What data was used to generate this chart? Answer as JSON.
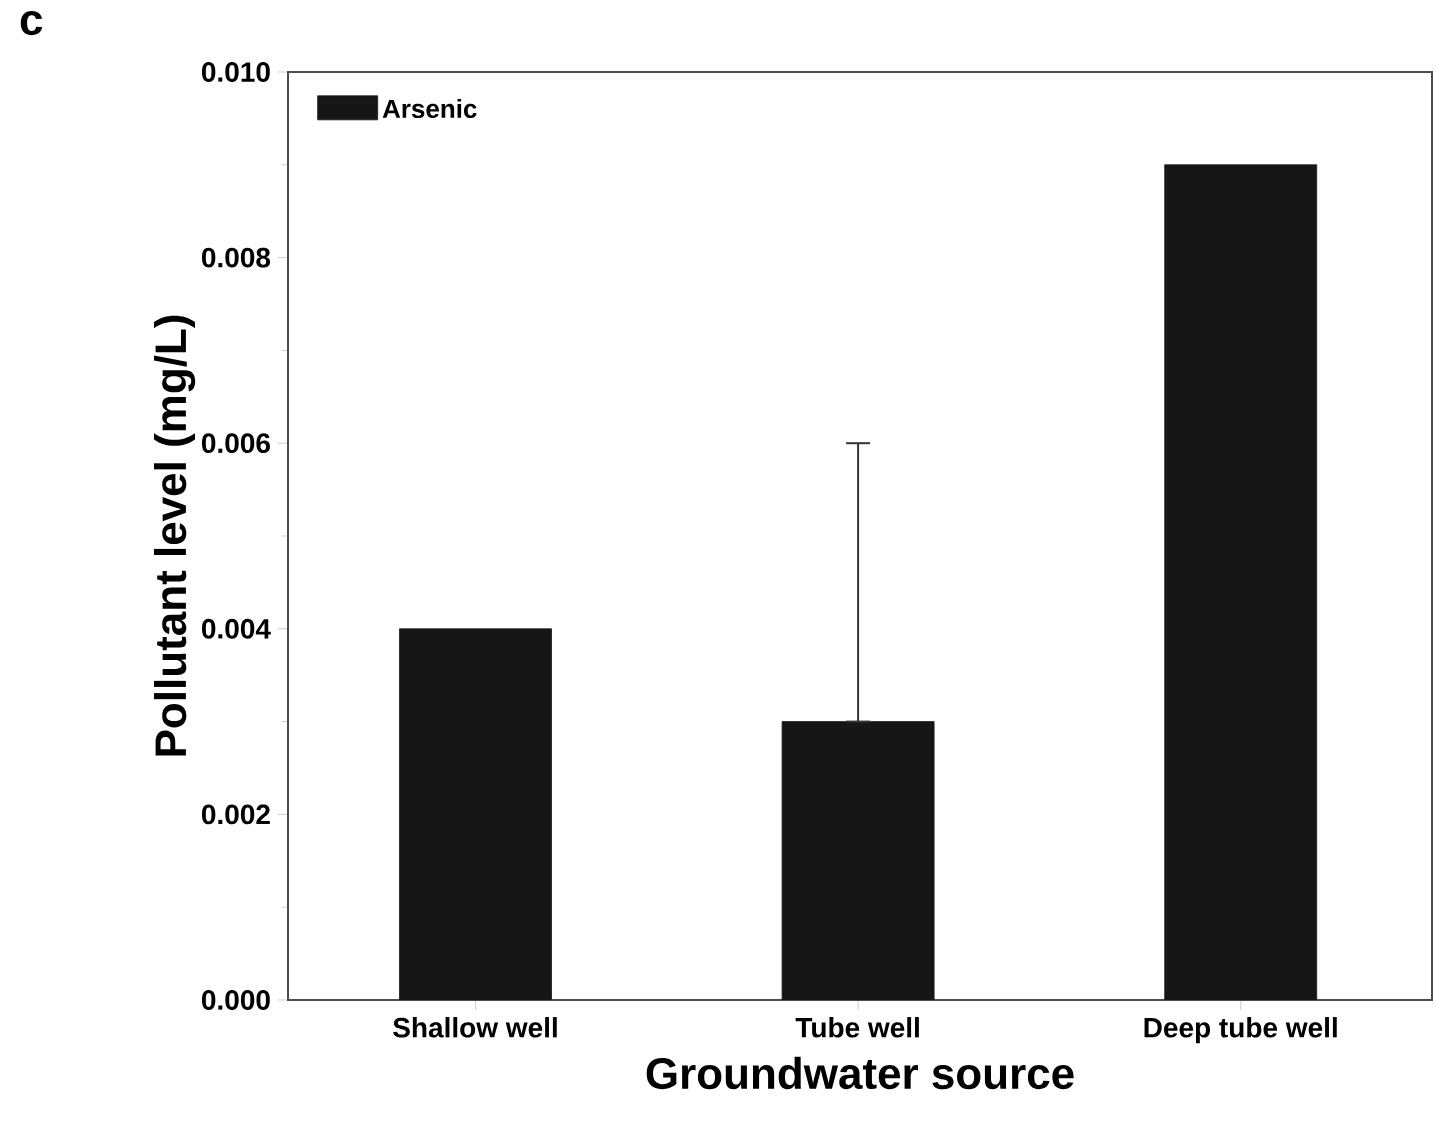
{
  "chart_data": {
    "type": "bar",
    "xlabel": "Groundwater source",
    "ylabel": "Pollutant level (mg/L)",
    "annotations": [
      "c"
    ],
    "categories": [
      "Shallow well",
      "Tube well",
      "Deep tube well"
    ],
    "series": [
      {
        "name": "Arsenic",
        "color": "#161616",
        "values": [
          0.004,
          0.003,
          0.009
        ],
        "errors": [
          null,
          [
            0.003,
            0.006
          ],
          null
        ]
      }
    ],
    "ylim": [
      0,
      0.01
    ],
    "yticks": [
      {
        "value": 0,
        "label": "0.000"
      },
      {
        "value": 0.002,
        "label": "0.002"
      },
      {
        "value": 0.004,
        "label": "0.004"
      },
      {
        "value": 0.006,
        "label": "0.006"
      },
      {
        "value": 0.008,
        "label": "0.008"
      },
      {
        "value": 0.01,
        "label": "0.010"
      }
    ],
    "legend": "top left",
    "grid": false
  }
}
